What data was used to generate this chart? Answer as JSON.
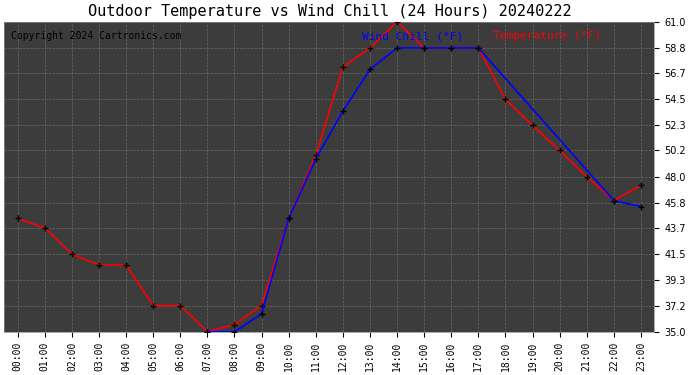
{
  "title": "Outdoor Temperature vs Wind Chill (24 Hours) 20240222",
  "copyright": "Copyright 2024 Cartronics.com",
  "legend_wind": "Wind Chill (°F)",
  "legend_temp": "Temperature (°F)",
  "hours": [
    0,
    1,
    2,
    3,
    4,
    5,
    6,
    7,
    8,
    9,
    10,
    11,
    12,
    13,
    14,
    15,
    16,
    17,
    18,
    19,
    20,
    21,
    22,
    23
  ],
  "temperature": [
    44.5,
    43.7,
    41.5,
    40.6,
    40.6,
    37.2,
    37.2,
    35.0,
    35.6,
    37.2,
    44.5,
    49.8,
    57.2,
    58.8,
    61.0,
    58.8,
    58.8,
    58.8,
    54.5,
    52.3,
    50.2,
    48.0,
    46.0,
    47.3
  ],
  "wind_chill": [
    null,
    null,
    null,
    null,
    null,
    null,
    null,
    35.0,
    35.0,
    36.5,
    44.5,
    49.5,
    53.5,
    57.0,
    58.8,
    58.8,
    58.8,
    58.8,
    null,
    null,
    null,
    null,
    46.0,
    45.5
  ],
  "ylim": [
    35.0,
    61.0
  ],
  "yticks": [
    35.0,
    37.2,
    39.3,
    41.5,
    43.7,
    45.8,
    48.0,
    50.2,
    52.3,
    54.5,
    56.7,
    58.8,
    61.0
  ],
  "plot_bg_color": "#3c3c3c",
  "fig_bg_color": "#ffffff",
  "grid_color": "#888888",
  "temp_color": "#ff0000",
  "wind_color": "#0000ff",
  "title_color": "#000000",
  "copyright_color": "#000000",
  "title_fontsize": 11,
  "copyright_fontsize": 7,
  "legend_fontsize": 8,
  "tick_fontsize": 7,
  "xlim": [
    -0.5,
    23.5
  ]
}
